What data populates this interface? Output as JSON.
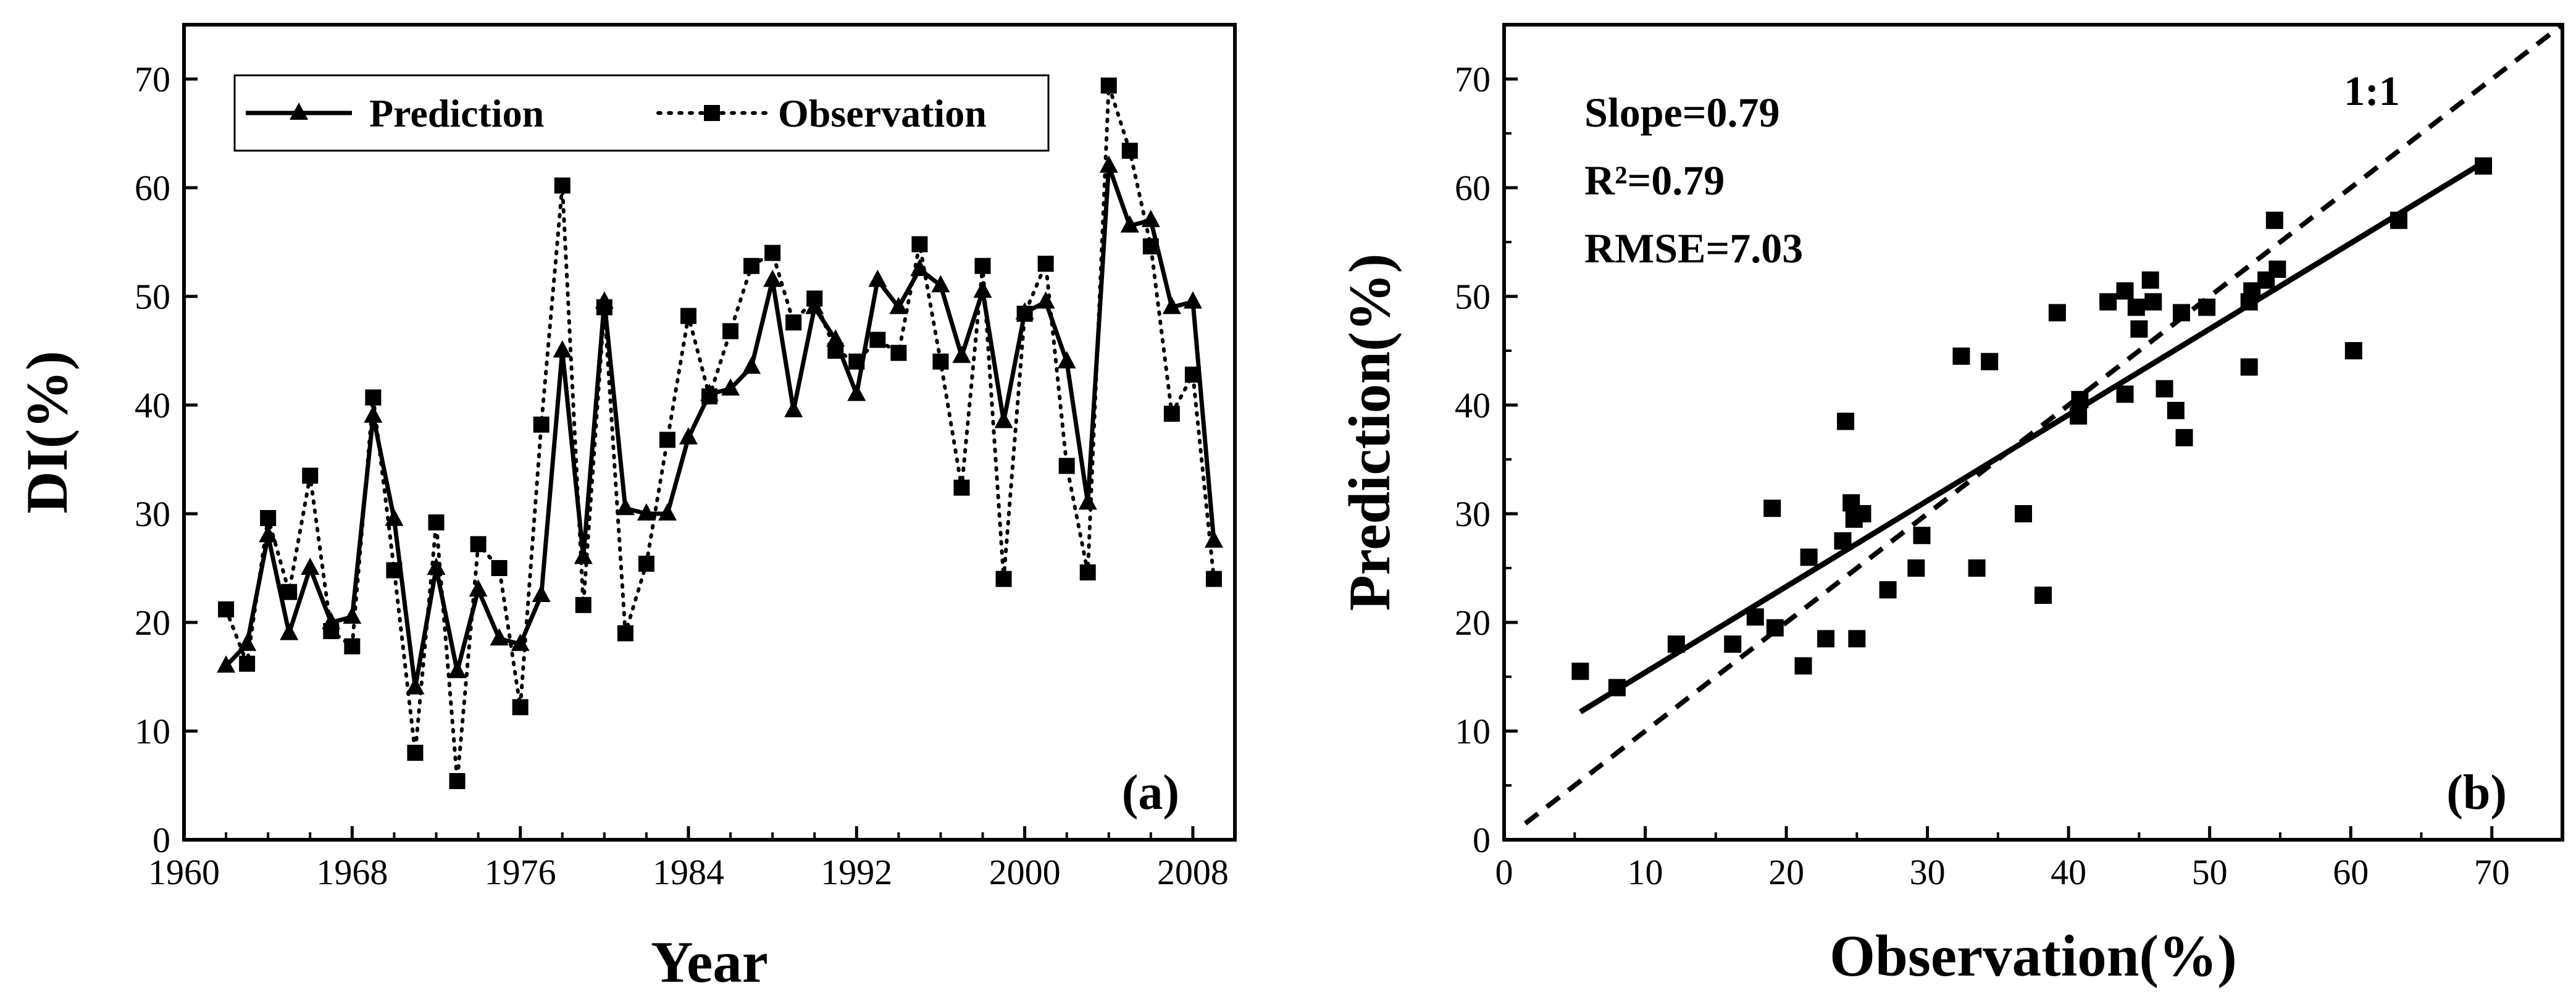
{
  "chart_data": [
    {
      "type": "line",
      "panel_label": "(a)",
      "xlabel": "Year",
      "ylabel": "DI(%)",
      "xlim": [
        1960,
        2010
      ],
      "ylim": [
        0,
        75
      ],
      "xticks": [
        1960,
        1968,
        1976,
        1984,
        1992,
        2000,
        2008
      ],
      "yticks": [
        0,
        10,
        20,
        30,
        40,
        50,
        60,
        70
      ],
      "x": [
        1962,
        1963,
        1964,
        1965,
        1966,
        1967,
        1968,
        1969,
        1970,
        1971,
        1972,
        1973,
        1974,
        1975,
        1976,
        1977,
        1978,
        1979,
        1980,
        1981,
        1982,
        1983,
        1984,
        1985,
        1986,
        1987,
        1988,
        1989,
        1990,
        1991,
        1992,
        1993,
        1994,
        1995,
        1996,
        1997,
        1998,
        1999,
        2000,
        2001,
        2002,
        2003,
        2004,
        2005,
        2006,
        2007,
        2008,
        2009
      ],
      "series": [
        {
          "name": "Prediction",
          "style": "solid-triangle",
          "values": [
            16,
            18,
            28,
            19,
            25,
            20,
            20.5,
            39,
            29.5,
            14,
            25,
            15.5,
            23,
            18.5,
            18,
            22.5,
            45,
            26,
            49.5,
            30.5,
            30,
            30,
            37,
            41,
            41.5,
            43.5,
            51.5,
            39.5,
            49,
            46,
            41,
            51.5,
            49,
            52.5,
            51,
            44.5,
            50.5,
            38.5,
            48.5,
            49.5,
            44,
            31,
            62,
            56.5,
            57,
            49,
            49.5,
            27.5
          ]
        },
        {
          "name": "Observation",
          "style": "dotted-square",
          "values": [
            21.2,
            16.2,
            29.6,
            22.8,
            33.5,
            19.2,
            17.8,
            40.7,
            24.8,
            8,
            29.2,
            5.4,
            27.2,
            25,
            12.2,
            38.2,
            60.2,
            21.6,
            49,
            19,
            25.4,
            36.8,
            48.2,
            40.8,
            46.8,
            52.8,
            54,
            47.6,
            49.8,
            45,
            44,
            46,
            44.8,
            54.8,
            44,
            32.4,
            52.8,
            24,
            48.4,
            53,
            34.4,
            24.6,
            69.4,
            63.4,
            54.6,
            39.2,
            42.8,
            24
          ]
        }
      ],
      "legend": [
        "Prediction",
        "Observation"
      ]
    },
    {
      "type": "scatter",
      "panel_label": "(b)",
      "xlabel": "Observation(%)",
      "ylabel": "Prediction(%)",
      "xlim": [
        0,
        75
      ],
      "ylim": [
        0,
        75
      ],
      "xticks": [
        0,
        10,
        20,
        30,
        40,
        50,
        60,
        70
      ],
      "yticks": [
        0,
        10,
        20,
        30,
        40,
        50,
        60,
        70
      ],
      "stats": [
        "Slope=0.79",
        "R²=0.79",
        "RMSE=7.03"
      ],
      "identity_label": "1:1",
      "fit_line": {
        "slope": 0.79,
        "intercept": 7.5,
        "x_range": [
          5.4,
          69.4
        ]
      },
      "identity_line": {
        "x_range": [
          1.5,
          75
        ]
      },
      "points": [
        [
          5.4,
          15.5
        ],
        [
          8,
          14
        ],
        [
          12.2,
          18
        ],
        [
          16.2,
          18
        ],
        [
          17.8,
          20.5
        ],
        [
          19,
          30.5
        ],
        [
          19.2,
          19.5
        ],
        [
          21.2,
          16
        ],
        [
          21.6,
          26
        ],
        [
          22.8,
          18.5
        ],
        [
          24,
          27.5
        ],
        [
          24.2,
          38.5
        ],
        [
          24.6,
          31
        ],
        [
          24.8,
          29.5
        ],
        [
          25,
          18.5
        ],
        [
          25.4,
          30
        ],
        [
          27.2,
          23
        ],
        [
          29.2,
          25
        ],
        [
          29.6,
          28
        ],
        [
          32.4,
          44.5
        ],
        [
          33.5,
          25
        ],
        [
          34.4,
          44
        ],
        [
          36.8,
          30
        ],
        [
          38.2,
          22.5
        ],
        [
          39.2,
          48.5
        ],
        [
          40.7,
          39
        ],
        [
          40.8,
          40.5
        ],
        [
          42.8,
          49.5
        ],
        [
          44,
          50.5
        ],
        [
          44,
          41
        ],
        [
          44.8,
          49
        ],
        [
          45,
          47
        ],
        [
          45.8,
          51.5
        ],
        [
          46,
          49.5
        ],
        [
          46.8,
          41.5
        ],
        [
          47.6,
          39.5
        ],
        [
          48,
          48.5
        ],
        [
          48.2,
          37
        ],
        [
          49.8,
          49
        ],
        [
          52.8,
          43.5
        ],
        [
          52.8,
          49.5
        ],
        [
          53,
          50.5
        ],
        [
          54,
          51.5
        ],
        [
          54.6,
          57
        ],
        [
          54.8,
          52.5
        ],
        [
          60.2,
          45
        ],
        [
          63.4,
          57
        ],
        [
          69.4,
          62
        ]
      ]
    }
  ]
}
